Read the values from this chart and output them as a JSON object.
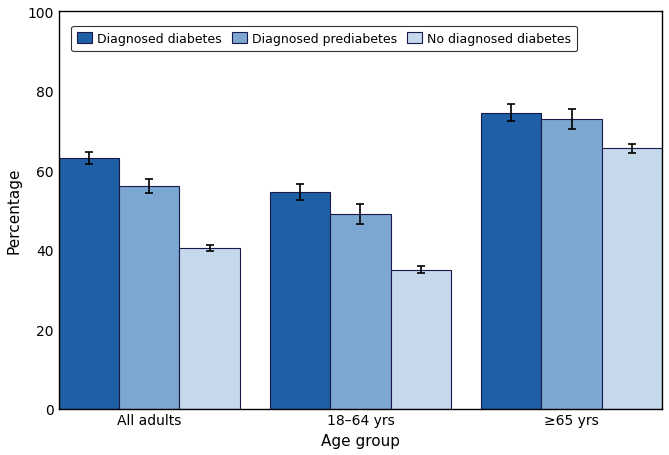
{
  "groups": [
    "All adults",
    "18–64 yrs",
    "≥65 yrs"
  ],
  "series": [
    {
      "label": "Diagnosed diabetes",
      "color": "#1F5FA6",
      "values": [
        63.0,
        54.5,
        74.5
      ],
      "errors": [
        1.5,
        2.0,
        2.2
      ]
    },
    {
      "label": "Diagnosed prediabetes",
      "color": "#7BA7D0",
      "values": [
        56.0,
        49.0,
        73.0
      ],
      "errors": [
        1.8,
        2.5,
        2.5
      ]
    },
    {
      "label": "No diagnosed diabetes",
      "color": "#C5D8EC",
      "values": [
        40.5,
        35.0,
        65.5
      ],
      "errors": [
        0.7,
        0.9,
        1.1
      ]
    }
  ],
  "ylabel": "Percentage",
  "xlabel": "Age group",
  "ylim": [
    0,
    100
  ],
  "yticks": [
    0,
    20,
    40,
    60,
    80,
    100
  ],
  "bar_width": 0.2,
  "group_positions": [
    0.3,
    1.0,
    1.7
  ],
  "background_color": "#FFFFFF",
  "errorbar_capsize": 3,
  "errorbar_linewidth": 1.2,
  "errorbar_color": "black",
  "edge_color": "#1A1A4A",
  "edge_linewidth": 0.8
}
